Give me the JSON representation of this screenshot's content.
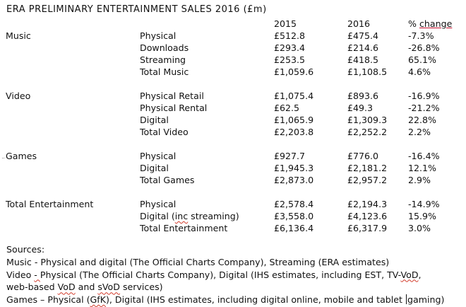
{
  "title": "ERA PRELIMINARY ENTERTAINMENT SALES 2016 (£m)",
  "headers": {
    "y2015": "2015",
    "y2016": "2016",
    "change": "% change"
  },
  "sections": [
    {
      "name": "Music",
      "rows": [
        {
          "label": "Physical",
          "v2015": "£512.8",
          "v2016": "£475.4",
          "change": "-7.3%"
        },
        {
          "label": "Downloads",
          "v2015": "£293.4",
          "v2016": "£214.6",
          "change": "-26.8%"
        },
        {
          "label": "Streaming",
          "v2015": "£253.5",
          "v2016": "£418.5",
          "change": "65.1%"
        },
        {
          "label": "Total Music",
          "v2015": "£1,059.6",
          "v2016": "£1,108.5",
          "change": "4.6%"
        }
      ]
    },
    {
      "name": "Video",
      "rows": [
        {
          "label": "Physical Retail",
          "v2015": "£1,075.4",
          "v2016": "£893.6",
          "change": "-16.9%"
        },
        {
          "label": "Physical Rental",
          "v2015": "£62.5",
          "v2016": "£49.3",
          "change": "-21.2%"
        },
        {
          "label": "Digital",
          "v2015": "£1,065.9",
          "v2016": "£1,309.3",
          "change": "22.8%"
        },
        {
          "label": "Total Video",
          "v2015": "£2,203.8",
          "v2016": "£2,252.2",
          "change": "2.2%"
        }
      ]
    },
    {
      "name": "Games",
      "rows": [
        {
          "label": "Physical",
          "v2015": "£927.7",
          "v2016": "£776.0",
          "change": "-16.4%"
        },
        {
          "label": "Digital",
          "v2015": "£1,945.3",
          "v2016": "£2,181.2",
          "change": "12.1%"
        },
        {
          "label": "Total Games",
          "v2015": "£2,873.0",
          "v2016": "£2,957.2",
          "change": "2.9%"
        }
      ]
    },
    {
      "name": "Total Entertainment",
      "rows": [
        {
          "label": "Physical",
          "v2015": "£2,578.4",
          "v2016": "£2,194.3",
          "change": "-14.9%"
        },
        {
          "label": "Digital (inc streaming)",
          "v2015": "£3,558.0",
          "v2016": "£4,123.6",
          "change": "15.9%"
        },
        {
          "label": "Total Entertainment",
          "v2015": "£6,136.4",
          "v2016": "£6,317.9",
          "change": "3.0%"
        }
      ]
    }
  ],
  "sources": {
    "heading": "Sources:",
    "lines": [
      "Music - Physical and digital (The Official Charts Company), Streaming (ERA estimates)",
      "Video -  Physical (The Official Charts Company), Digital (IHS estimates, including EST, TV-VoD,",
      "web-based VoD and sVoD services)",
      "Games – Physical (GfK), Digital (IHS estimates, including digital online, mobile and tablet gaming)"
    ]
  }
}
